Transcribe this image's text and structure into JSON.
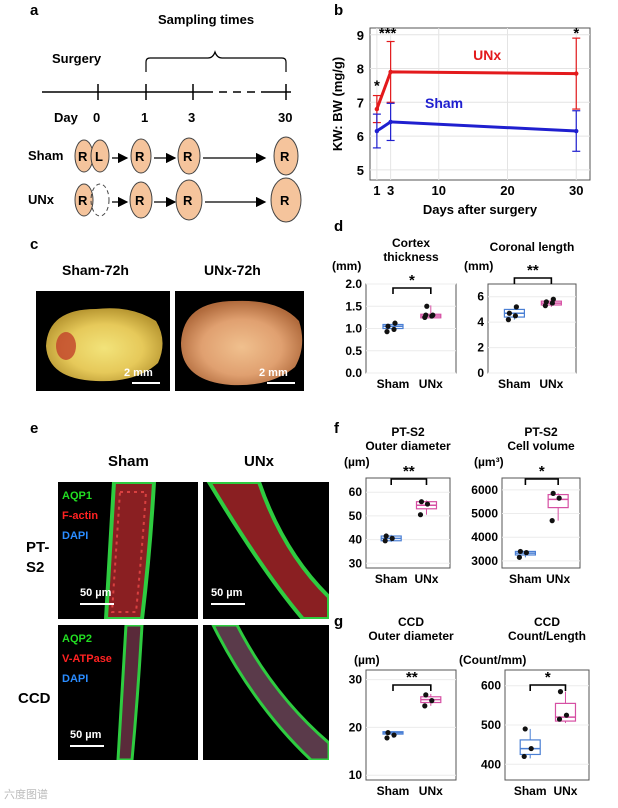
{
  "panel_labels": {
    "a": "a",
    "b": "b",
    "c": "c",
    "d": "d",
    "e": "e",
    "f": "f",
    "g": "g"
  },
  "panel_a": {
    "sampling_times": "Sampling times",
    "surgery": "Surgery",
    "day_label": "Day",
    "days": [
      "0",
      "1",
      "3",
      "30"
    ],
    "rows": [
      {
        "name": "Sham",
        "kidneys": [
          "R",
          "L",
          "R",
          "R",
          "R"
        ]
      },
      {
        "name": "UNx",
        "kidneys": [
          "R",
          "R",
          "R",
          "R"
        ]
      }
    ],
    "colors": {
      "kidney": "#f5c49c",
      "stroke": "#444444"
    }
  },
  "chart_data": [
    {
      "id": "b",
      "type": "line",
      "ylabel": "KW: BW (mg/g)",
      "xlabel": "Days after surgery",
      "x_ticks": [
        1,
        3,
        10,
        20,
        30
      ],
      "y_ticks": [
        5,
        6,
        7,
        8,
        9
      ],
      "xlim": [
        0,
        32
      ],
      "ylim": [
        4.7,
        9.2
      ],
      "series": [
        {
          "name": "UNx",
          "color": "#e31a1c",
          "x": [
            1,
            3,
            30
          ],
          "y": [
            6.8,
            7.9,
            7.85
          ],
          "err": [
            0.4,
            0.9,
            1.05
          ]
        },
        {
          "name": "Sham",
          "color": "#1f1fcf",
          "x": [
            1,
            3,
            30
          ],
          "y": [
            6.15,
            6.42,
            6.15
          ],
          "err": [
            0.5,
            0.55,
            0.6
          ]
        }
      ],
      "annotations": [
        {
          "x": 1,
          "text": "*"
        },
        {
          "x": 3,
          "text": "***"
        },
        {
          "x": 30,
          "text": "*"
        }
      ]
    },
    {
      "id": "d1",
      "type": "box",
      "title": "Cortex thickness",
      "unit": "(mm)",
      "categories": [
        "Sham",
        "UNx"
      ],
      "y_ticks": [
        "0.0",
        "0.5",
        "1.0",
        "1.5",
        "2.0"
      ],
      "ylim": [
        0,
        2.0
      ],
      "boxes": [
        {
          "q1": 1.0,
          "median": 1.05,
          "q3": 1.09,
          "min": 0.95,
          "max": 1.15,
          "points": [
            0.93,
            0.98,
            1.05,
            1.12
          ]
        },
        {
          "q1": 1.24,
          "median": 1.28,
          "q3": 1.32,
          "min": 1.22,
          "max": 1.52,
          "points": [
            1.25,
            1.28,
            1.3,
            1.3,
            1.5
          ]
        }
      ],
      "sig": "*",
      "colors": [
        "#4a7fd4",
        "#d64fa3"
      ]
    },
    {
      "id": "d2",
      "type": "box",
      "title": "Coronal length",
      "unit": "(mm)",
      "categories": [
        "Sham",
        "UNx"
      ],
      "y_ticks": [
        "0",
        "2",
        "4",
        "6"
      ],
      "ylim": [
        0,
        7
      ],
      "boxes": [
        {
          "q1": 4.4,
          "median": 4.7,
          "q3": 5.0,
          "min": 4.2,
          "max": 5.3,
          "points": [
            4.2,
            4.5,
            4.7,
            5.2
          ]
        },
        {
          "q1": 5.35,
          "median": 5.5,
          "q3": 5.65,
          "min": 5.2,
          "max": 5.9,
          "points": [
            5.3,
            5.5,
            5.6,
            5.8
          ]
        }
      ],
      "sig": "**",
      "colors": [
        "#4a7fd4",
        "#d64fa3"
      ]
    },
    {
      "id": "f1",
      "type": "box",
      "title": "PT-S2 Outer diameter",
      "unit": "(µm)",
      "categories": [
        "Sham",
        "UNx"
      ],
      "y_ticks": [
        "30",
        "40",
        "50",
        "60"
      ],
      "ylim": [
        28,
        66
      ],
      "boxes": [
        {
          "q1": 39.5,
          "median": 40.5,
          "q3": 41.5,
          "min": 39,
          "max": 42,
          "points": [
            39.5,
            40.5,
            41.5
          ]
        },
        {
          "q1": 53,
          "median": 54.5,
          "q3": 56,
          "min": 50.5,
          "max": 56.5,
          "points": [
            50.5,
            55,
            56
          ]
        }
      ],
      "sig": "**",
      "colors": [
        "#4a7fd4",
        "#d64fa3"
      ]
    },
    {
      "id": "f2",
      "type": "box",
      "title": "PT-S2 Cell volume",
      "unit": "(µm³)",
      "categories": [
        "Sham",
        "UNx"
      ],
      "y_ticks": [
        "3000",
        "4000",
        "5000",
        "6000"
      ],
      "ylim": [
        2700,
        6500
      ],
      "boxes": [
        {
          "q1": 3250,
          "median": 3330,
          "q3": 3400,
          "min": 3150,
          "max": 3420,
          "points": [
            3150,
            3350,
            3400
          ]
        },
        {
          "q1": 5250,
          "median": 5600,
          "q3": 5800,
          "min": 4700,
          "max": 5850,
          "points": [
            4700,
            5650,
            5850
          ]
        }
      ],
      "sig": "*",
      "colors": [
        "#4a7fd4",
        "#d64fa3"
      ]
    },
    {
      "id": "g1",
      "type": "box",
      "title": "CCD Outer diameter",
      "unit": "(µm)",
      "categories": [
        "Sham",
        "UNx"
      ],
      "y_ticks": [
        "10",
        "20",
        "30"
      ],
      "ylim": [
        9,
        32
      ],
      "boxes": [
        {
          "q1": 18.6,
          "median": 18.9,
          "q3": 19.1,
          "min": 17.8,
          "max": 19.2,
          "points": [
            17.8,
            18.4,
            18.9
          ]
        },
        {
          "q1": 25.2,
          "median": 25.8,
          "q3": 26.4,
          "min": 24.5,
          "max": 27.0,
          "points": [
            24.5,
            25.6,
            26.8
          ]
        }
      ],
      "sig": "**",
      "colors": [
        "#4a7fd4",
        "#d64fa3"
      ]
    },
    {
      "id": "g2",
      "type": "box",
      "title": "CCD Count/Length",
      "unit": "(Count/mm)",
      "categories": [
        "Sham",
        "UNx"
      ],
      "y_ticks": [
        "400",
        "500",
        "600"
      ],
      "ylim": [
        360,
        640
      ],
      "boxes": [
        {
          "q1": 425,
          "median": 440,
          "q3": 462,
          "min": 415,
          "max": 490,
          "points": [
            420,
            440,
            490
          ]
        },
        {
          "q1": 510,
          "median": 520,
          "q3": 555,
          "min": 505,
          "max": 585,
          "points": [
            515,
            525,
            585
          ]
        }
      ],
      "sig": "*",
      "colors": [
        "#4a7fd4",
        "#d64fa3"
      ]
    }
  ],
  "panel_c": {
    "left": "Sham-72h",
    "right": "UNx-72h",
    "scale": "2 mm"
  },
  "panel_e": {
    "col_sham": "Sham",
    "col_unx": "UNx",
    "row1": "PT-\nS2",
    "row2": "CCD",
    "row1_stains": [
      {
        "text": "AQP1",
        "color": "#22dd22"
      },
      {
        "text": "F-actin",
        "color": "#ff2222"
      },
      {
        "text": "DAPI",
        "color": "#2a8cff"
      }
    ],
    "row2_stains": [
      {
        "text": "AQP2",
        "color": "#22dd22"
      },
      {
        "text": "V-ATPase",
        "color": "#ff2222"
      },
      {
        "text": "DAPI",
        "color": "#2a8cff"
      }
    ],
    "scale": "50 µm"
  },
  "watermark": "六度图谱"
}
